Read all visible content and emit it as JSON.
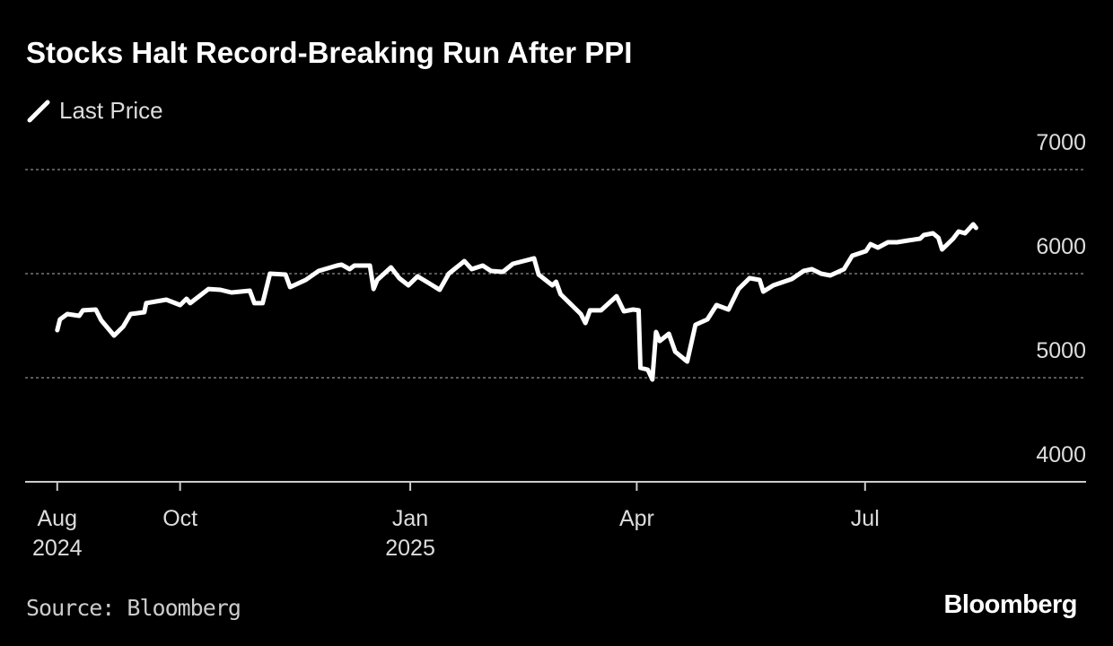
{
  "chart_data": {
    "type": "line",
    "title": "Stocks Halt Record-Breaking Run After PPI",
    "source": "Source: Bloomberg",
    "brand": "Bloomberg",
    "x": [
      2024.615,
      2024.618,
      2024.626,
      2024.639,
      2024.643,
      2024.657,
      2024.663,
      2024.677,
      2024.687,
      2024.695,
      2024.71,
      2024.712,
      2024.734,
      2024.749,
      2024.756,
      2024.76,
      2024.78,
      2024.793,
      2024.805,
      2024.825,
      2024.83,
      2024.839,
      2024.847,
      2024.864,
      2024.869,
      2024.886,
      2024.9,
      2024.92,
      2024.925,
      2024.934,
      2024.939,
      2024.949,
      2024.956,
      2024.96,
      2024.964,
      2024.979,
      2024.988,
      2024.998,
      2025.008,
      2025.021,
      2025.032,
      2025.042,
      2025.059,
      2025.067,
      2025.079,
      2025.088,
      2025.101,
      2025.112,
      2025.135,
      2025.14,
      2025.155,
      2025.159,
      2025.164,
      2025.174,
      2025.186,
      2025.191,
      2025.196,
      2025.208,
      2025.225,
      2025.233,
      2025.243,
      2025.249,
      2025.251,
      2025.259,
      2025.264,
      2025.268,
      2025.272,
      2025.282,
      2025.289,
      2025.302,
      2025.311,
      2025.324,
      2025.334,
      2025.347,
      2025.358,
      2025.37,
      2025.381,
      2025.385,
      2025.396,
      2025.416,
      2025.429,
      2025.438,
      2025.448,
      2025.458,
      2025.473,
      2025.482,
      2025.497,
      2025.502,
      2025.51,
      2025.521,
      2025.531,
      2025.543,
      2025.556,
      2025.56,
      2025.57,
      2025.576,
      2025.58,
      2025.592,
      2025.598,
      2025.605,
      2025.614,
      2025.617
    ],
    "series": [
      {
        "name": "Last Price",
        "color": "#ffffff",
        "values": [
          5457,
          5560,
          5612,
          5595,
          5647,
          5655,
          5552,
          5405,
          5491,
          5612,
          5629,
          5716,
          5750,
          5698,
          5759,
          5716,
          5853,
          5845,
          5819,
          5836,
          5716,
          5716,
          6000,
          5991,
          5871,
          5940,
          6026,
          6078,
          6086,
          6043,
          6078,
          6078,
          6078,
          5853,
          5940,
          6060,
          5957,
          5888,
          5974,
          5905,
          5845,
          6000,
          6121,
          6043,
          6078,
          6026,
          6017,
          6095,
          6147,
          5991,
          5888,
          5922,
          5802,
          5716,
          5612,
          5526,
          5647,
          5647,
          5784,
          5638,
          5655,
          5647,
          5095,
          5078,
          4983,
          5440,
          5353,
          5422,
          5250,
          5155,
          5509,
          5560,
          5698,
          5655,
          5853,
          5957,
          5940,
          5828,
          5888,
          5948,
          6026,
          6043,
          6000,
          5983,
          6043,
          6172,
          6216,
          6284,
          6250,
          6302,
          6302,
          6319,
          6336,
          6371,
          6388,
          6345,
          6233,
          6336,
          6405,
          6388,
          6474,
          6440
        ]
      }
    ],
    "xlim": [
      2024.58,
      2025.737
    ],
    "xticks": [
      {
        "value": 2024.615,
        "label": "Aug 2024"
      },
      {
        "value": 2024.749,
        "label": "Oct"
      },
      {
        "value": 2025.0,
        "label": "Jan 2025"
      },
      {
        "value": 2025.247,
        "label": "Apr"
      },
      {
        "value": 2025.496,
        "label": "Jul"
      }
    ],
    "ylim": [
      4000,
      7000
    ],
    "yticks": [
      4000,
      5000,
      6000,
      7000
    ],
    "grid": true
  }
}
